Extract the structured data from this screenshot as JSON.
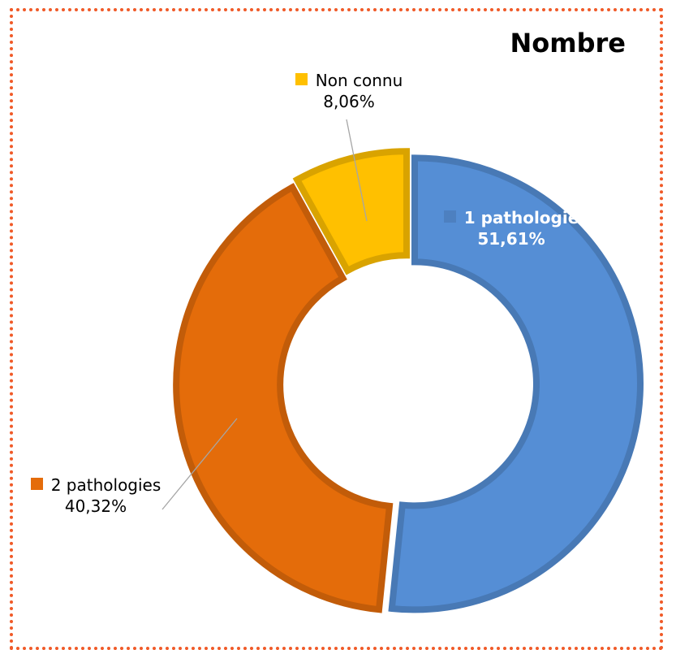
{
  "chart_data": {
    "type": "donut",
    "title": "Nombre",
    "categories": [
      "1 pathologie",
      "2 pathologies",
      "Non connu"
    ],
    "values": [
      51.61,
      40.32,
      8.06
    ],
    "value_labels": [
      "51,61%",
      "40,32%",
      "8,06%"
    ],
    "colors": [
      "#558ed5",
      "#e46c0a",
      "#ffc000"
    ]
  }
}
